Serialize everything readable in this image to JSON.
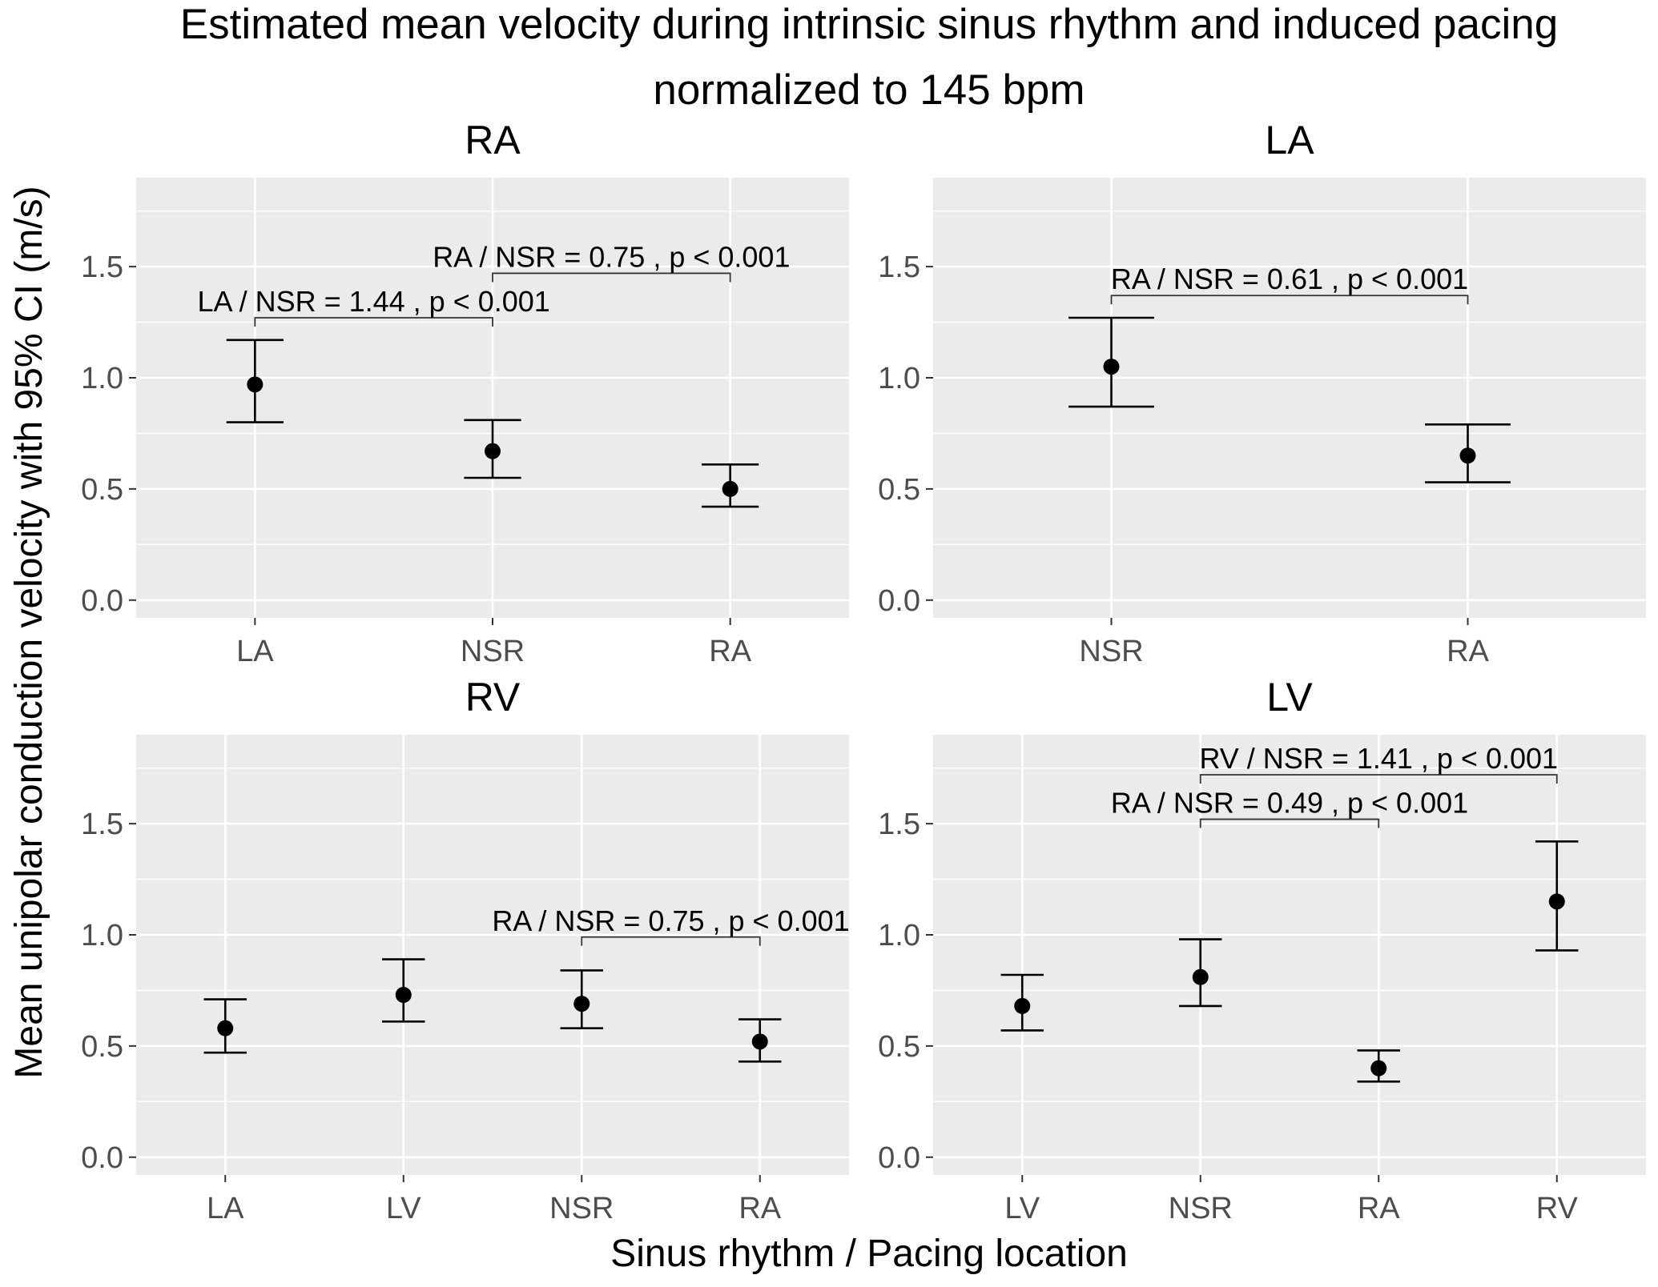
{
  "title_line1": "Estimated mean velocity during intrinsic sinus rhythm and induced pacing",
  "title_line2": "normalized to 145 bpm",
  "xlabel": "Sinus rhythm / Pacing location",
  "ylabel": "Mean unipolar conduction velocity with 95% CI (m/s)",
  "colors": {
    "panel_bg": "#ebebeb",
    "grid": "#ffffff",
    "point": "#000000",
    "tick_text": "#4d4d4d"
  },
  "chart_data": [
    {
      "type": "errorbar",
      "panel": "RA",
      "categories": [
        "LA",
        "NSR",
        "RA"
      ],
      "values": [
        0.97,
        0.67,
        0.5
      ],
      "lower": [
        0.8,
        0.55,
        0.42
      ],
      "upper": [
        1.17,
        0.81,
        0.61
      ],
      "ylim": [
        -0.08,
        1.9
      ],
      "yticks": [
        0.0,
        0.5,
        1.0,
        1.5
      ],
      "ytick_labels": [
        "0.0",
        "0.5",
        "1.0",
        "1.5"
      ],
      "annotations": [
        {
          "from": "LA",
          "to": "NSR",
          "y": 1.27,
          "label": "LA / NSR = 1.44 , p < 0.001"
        },
        {
          "from": "NSR",
          "to": "RA",
          "y": 1.47,
          "label": "RA / NSR = 0.75 , p < 0.001"
        }
      ]
    },
    {
      "type": "errorbar",
      "panel": "LA",
      "categories": [
        "NSR",
        "RA"
      ],
      "values": [
        1.05,
        0.65
      ],
      "lower": [
        0.87,
        0.53
      ],
      "upper": [
        1.27,
        0.79
      ],
      "ylim": [
        -0.08,
        1.9
      ],
      "yticks": [
        0.0,
        0.5,
        1.0,
        1.5
      ],
      "ytick_labels": [
        "0.0",
        "0.5",
        "1.0",
        "1.5"
      ],
      "annotations": [
        {
          "from": "NSR",
          "to": "RA",
          "y": 1.37,
          "label": "RA / NSR = 0.61 , p < 0.001"
        }
      ]
    },
    {
      "type": "errorbar",
      "panel": "RV",
      "categories": [
        "LA",
        "LV",
        "NSR",
        "RA"
      ],
      "values": [
        0.58,
        0.73,
        0.69,
        0.52
      ],
      "lower": [
        0.47,
        0.61,
        0.58,
        0.43
      ],
      "upper": [
        0.71,
        0.89,
        0.84,
        0.62
      ],
      "ylim": [
        -0.08,
        1.9
      ],
      "yticks": [
        0.0,
        0.5,
        1.0,
        1.5
      ],
      "ytick_labels": [
        "0.0",
        "0.5",
        "1.0",
        "1.5"
      ],
      "annotations": [
        {
          "from": "NSR",
          "to": "RA",
          "y": 0.99,
          "label": "RA / NSR = 0.75 , p < 0.001"
        }
      ]
    },
    {
      "type": "errorbar",
      "panel": "LV",
      "categories": [
        "LV",
        "NSR",
        "RA",
        "RV"
      ],
      "values": [
        0.68,
        0.81,
        0.4,
        1.15
      ],
      "lower": [
        0.57,
        0.68,
        0.34,
        0.93
      ],
      "upper": [
        0.82,
        0.98,
        0.48,
        1.42
      ],
      "ylim": [
        -0.08,
        1.9
      ],
      "yticks": [
        0.0,
        0.5,
        1.0,
        1.5
      ],
      "ytick_labels": [
        "0.0",
        "0.5",
        "1.0",
        "1.5"
      ],
      "annotations": [
        {
          "from": "NSR",
          "to": "RA",
          "y": 1.52,
          "label": "RA / NSR = 0.49 , p < 0.001"
        },
        {
          "from": "NSR",
          "to": "RV",
          "y": 1.72,
          "label": "RV / NSR = 1.41 , p < 0.001"
        }
      ]
    }
  ]
}
